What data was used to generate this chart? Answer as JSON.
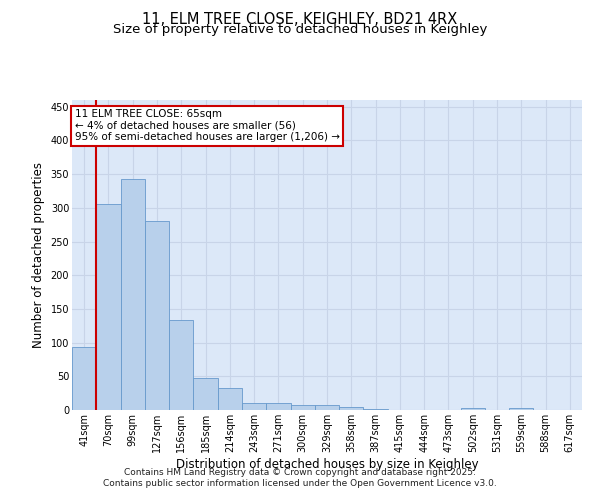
{
  "title1": "11, ELM TREE CLOSE, KEIGHLEY, BD21 4RX",
  "title2": "Size of property relative to detached houses in Keighley",
  "xlabel": "Distribution of detached houses by size in Keighley",
  "ylabel": "Number of detached properties",
  "categories": [
    "41sqm",
    "70sqm",
    "99sqm",
    "127sqm",
    "156sqm",
    "185sqm",
    "214sqm",
    "243sqm",
    "271sqm",
    "300sqm",
    "329sqm",
    "358sqm",
    "387sqm",
    "415sqm",
    "444sqm",
    "473sqm",
    "502sqm",
    "531sqm",
    "559sqm",
    "588sqm",
    "617sqm"
  ],
  "values": [
    93,
    305,
    343,
    280,
    133,
    47,
    32,
    10,
    10,
    8,
    8,
    5,
    2,
    0,
    0,
    0,
    3,
    0,
    3,
    0,
    0
  ],
  "bar_color": "#b8d0eb",
  "bar_edge_color": "#6699cc",
  "annotation_text": "11 ELM TREE CLOSE: 65sqm\n← 4% of detached houses are smaller (56)\n95% of semi-detached houses are larger (1,206) →",
  "annotation_box_color": "#ffffff",
  "annotation_box_edge": "#cc0000",
  "vline_color": "#cc0000",
  "ylim": [
    0,
    460
  ],
  "yticks": [
    0,
    50,
    100,
    150,
    200,
    250,
    300,
    350,
    400,
    450
  ],
  "grid_color": "#c8d4e8",
  "bg_color": "#dce8f8",
  "footer": "Contains HM Land Registry data © Crown copyright and database right 2025.\nContains public sector information licensed under the Open Government Licence v3.0.",
  "title_fontsize": 10.5,
  "subtitle_fontsize": 9.5,
  "axis_label_fontsize": 8.5,
  "tick_fontsize": 7,
  "footer_fontsize": 6.5,
  "ann_fontsize": 7.5
}
